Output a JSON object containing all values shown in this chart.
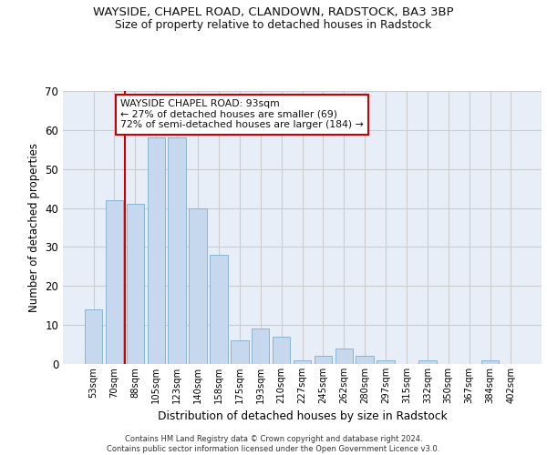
{
  "title1": "WAYSIDE, CHAPEL ROAD, CLANDOWN, RADSTOCK, BA3 3BP",
  "title2": "Size of property relative to detached houses in Radstock",
  "xlabel": "Distribution of detached houses by size in Radstock",
  "ylabel": "Number of detached properties",
  "bar_labels": [
    "53sqm",
    "70sqm",
    "88sqm",
    "105sqm",
    "123sqm",
    "140sqm",
    "158sqm",
    "175sqm",
    "193sqm",
    "210sqm",
    "227sqm",
    "245sqm",
    "262sqm",
    "280sqm",
    "297sqm",
    "315sqm",
    "332sqm",
    "350sqm",
    "367sqm",
    "384sqm",
    "402sqm"
  ],
  "bar_values": [
    14,
    42,
    41,
    58,
    58,
    40,
    28,
    6,
    9,
    7,
    1,
    2,
    4,
    2,
    1,
    0,
    1,
    0,
    0,
    1,
    0
  ],
  "bar_color": "#c5d8ed",
  "bar_edgecolor": "#8ab4d4",
  "vline_x": 1.5,
  "vline_color": "#cc0000",
  "annotation_text": "WAYSIDE CHAPEL ROAD: 93sqm\n← 27% of detached houses are smaller (69)\n72% of semi-detached houses are larger (184) →",
  "annotation_box_edgecolor": "#cc0000",
  "ylim": [
    0,
    70
  ],
  "yticks": [
    0,
    10,
    20,
    30,
    40,
    50,
    60,
    70
  ],
  "grid_color": "#cccccc",
  "bg_color": "#e8eef8",
  "footer1": "Contains HM Land Registry data © Crown copyright and database right 2024.",
  "footer2": "Contains public sector information licensed under the Open Government Licence v3.0."
}
